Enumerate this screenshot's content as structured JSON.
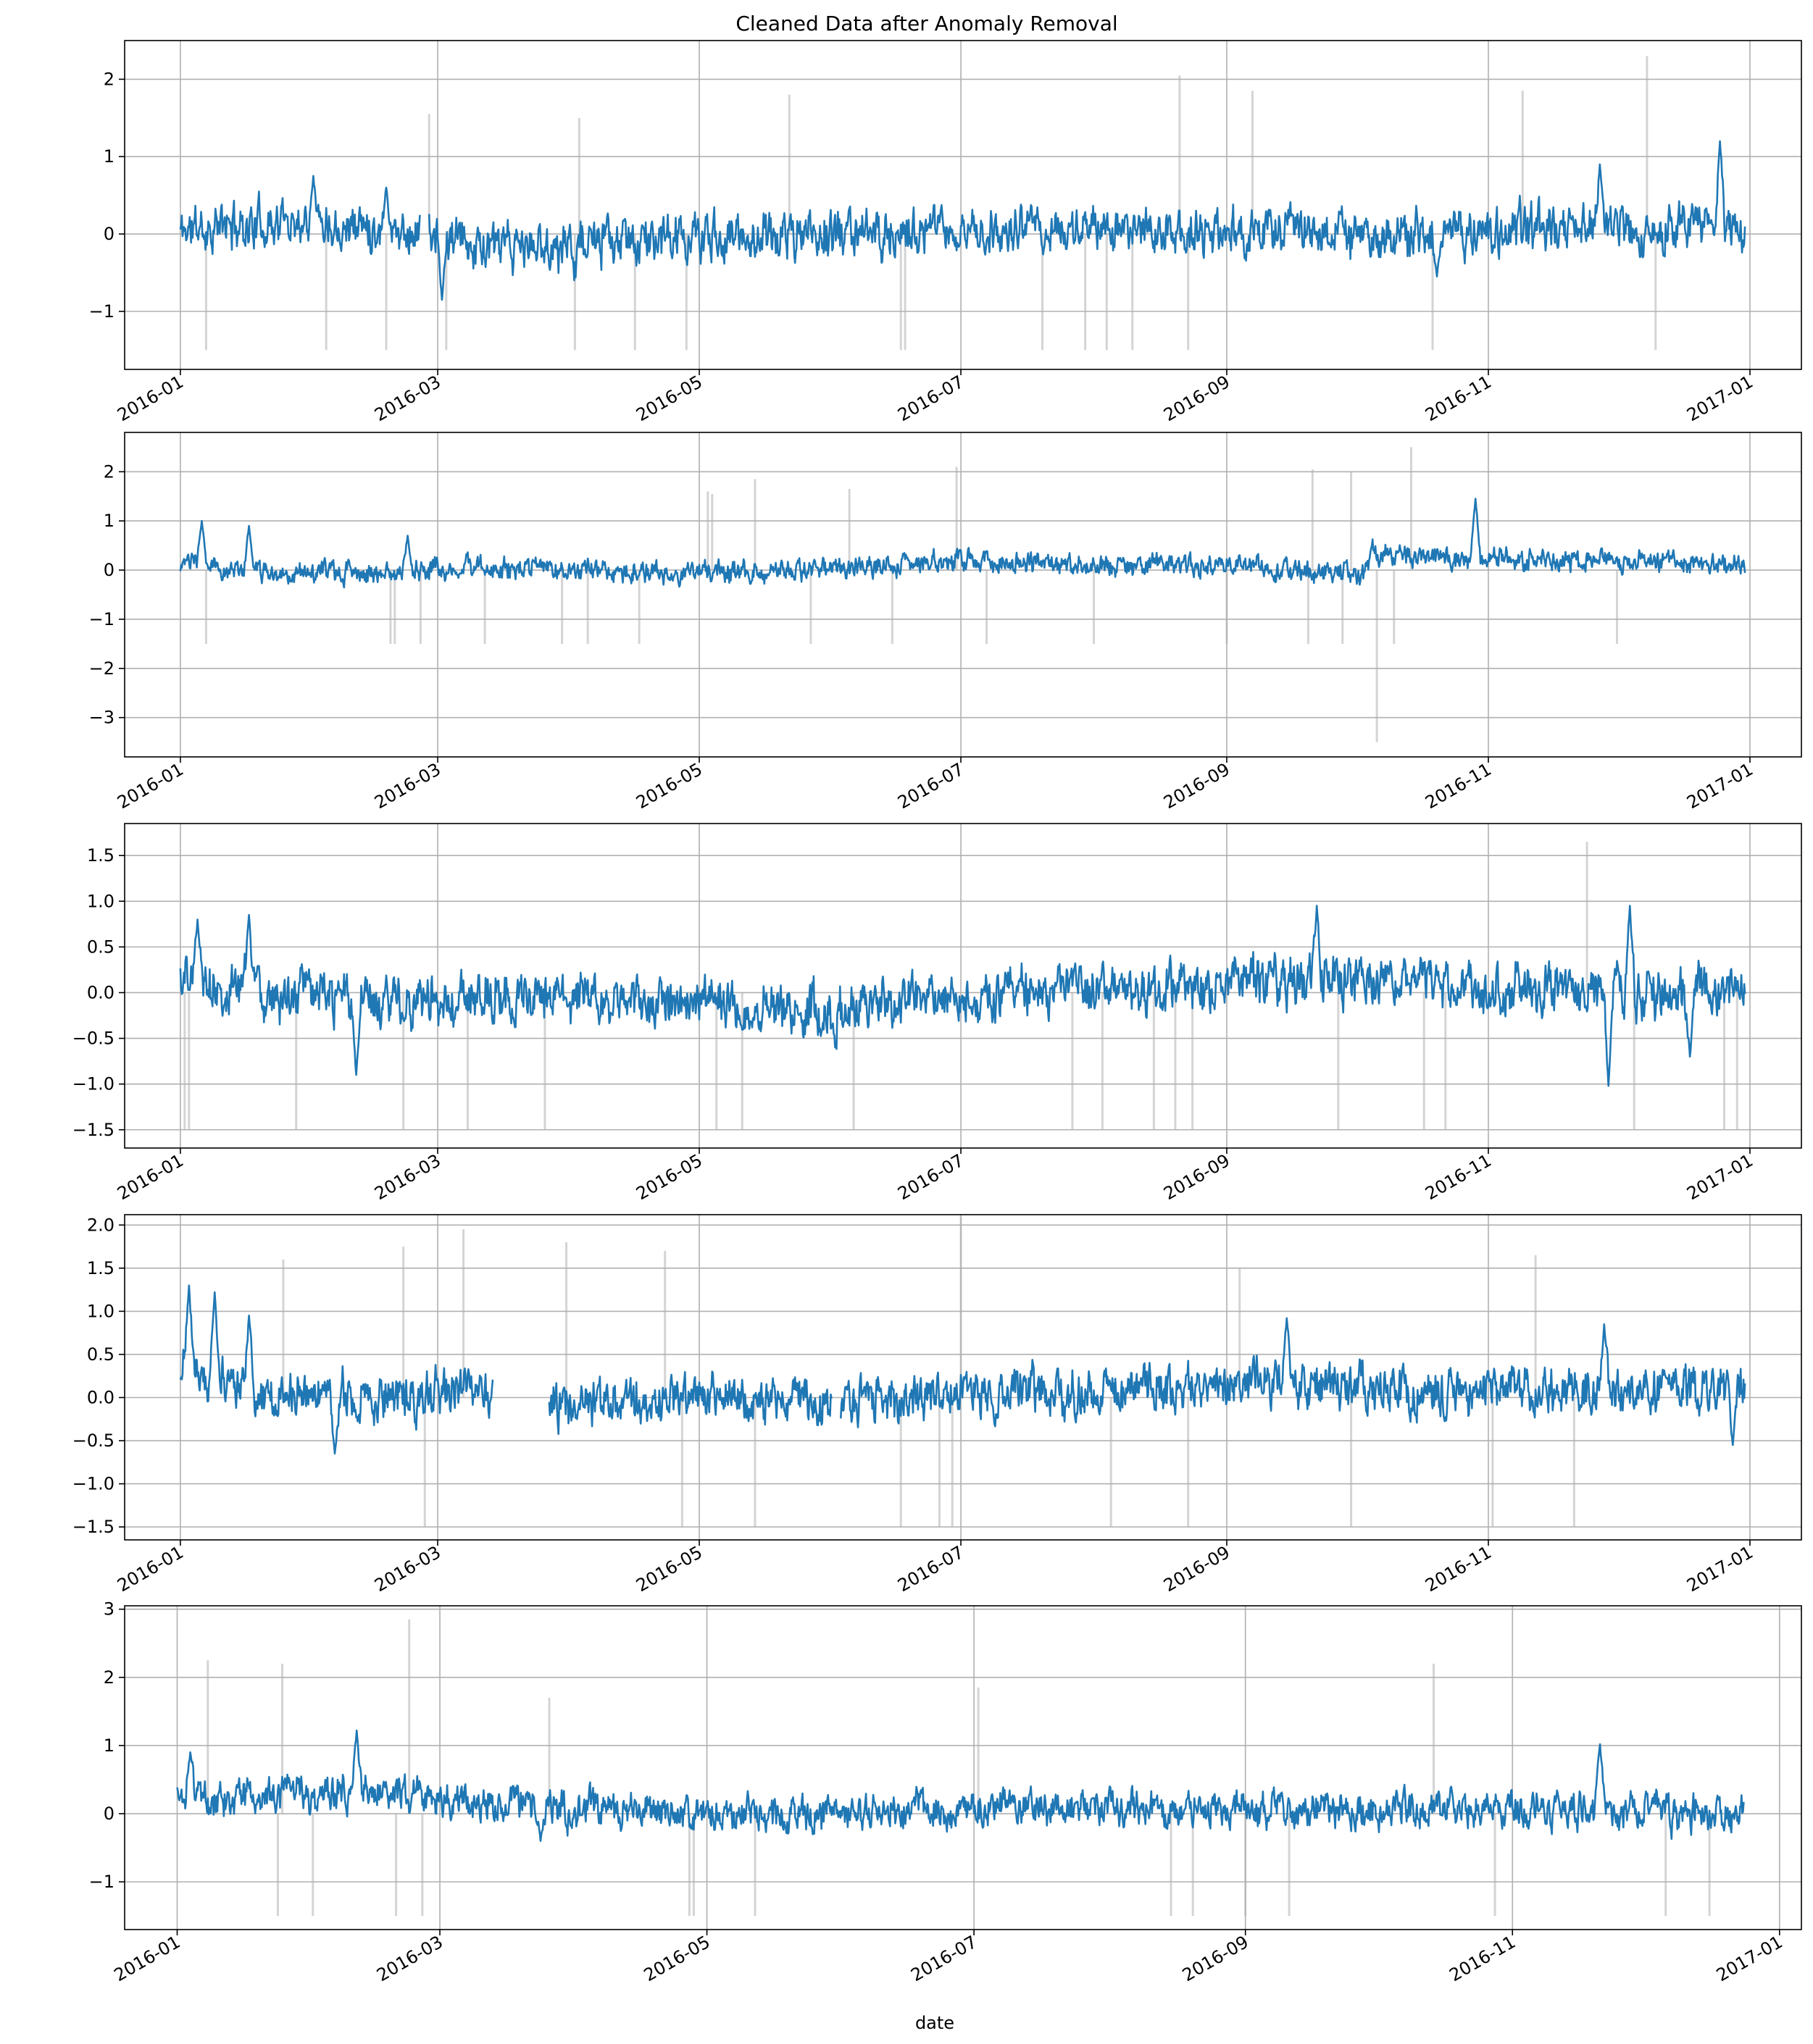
{
  "figure": {
    "title": "Cleaned Data after Anomaly Removal",
    "xlabel": "date"
  },
  "colors": {
    "series": "#1f77b4",
    "removed": "#b0b0b0",
    "grid": "#b0b0b0",
    "axes": "#000000"
  },
  "chart_data": [
    {
      "type": "line",
      "series_name": "",
      "x_range": [
        "2016-01-01",
        "2016-12-31"
      ],
      "x_ticks": [
        "2016-01",
        "2016-03",
        "2016-05",
        "2016-07",
        "2016-09",
        "2016-11",
        "2017-01"
      ],
      "ylim": [
        -1.75,
        2.5
      ],
      "y_ticks": [
        -1,
        0,
        1,
        2
      ],
      "y_tick_labels": [
        "−1",
        "0",
        "1",
        "2"
      ],
      "grid": true,
      "noise": {
        "amplitude": 0.22,
        "seed": 11
      },
      "level_points": [
        [
          "2016-01-01",
          0.05
        ],
        [
          "2016-02-01",
          0.2
        ],
        [
          "2016-02-28",
          0.0
        ],
        [
          "2016-03-15",
          -0.2
        ],
        [
          "2016-05-01",
          -0.05
        ],
        [
          "2016-06-01",
          0.0
        ],
        [
          "2016-08-01",
          0.05
        ],
        [
          "2016-10-15",
          0.0
        ],
        [
          "2016-11-15",
          0.05
        ],
        [
          "2016-12-31",
          0.1
        ]
      ],
      "spikes": [
        [
          "2016-02-01",
          0.75
        ],
        [
          "2016-02-18",
          0.6
        ],
        [
          "2016-03-02",
          -0.85
        ],
        [
          "2016-11-27",
          0.9
        ],
        [
          "2016-12-25",
          1.2
        ],
        [
          "2016-10-20",
          -0.55
        ]
      ],
      "gaps": [
        [
          "2016-02-26",
          "2016-02-28"
        ]
      ],
      "removed_lines": [
        [
          "2016-01-07",
          -1.5
        ],
        [
          "2016-02-04",
          -1.5
        ],
        [
          "2016-02-18",
          -1.5
        ],
        [
          "2016-02-28",
          1.55
        ],
        [
          "2016-03-03",
          -1.5
        ],
        [
          "2016-04-02",
          -1.5
        ],
        [
          "2016-04-03",
          1.5
        ],
        [
          "2016-04-16",
          -1.5
        ],
        [
          "2016-04-28",
          -1.5
        ],
        [
          "2016-05-22",
          1.8
        ],
        [
          "2016-06-17",
          -1.5
        ],
        [
          "2016-06-18",
          -1.5
        ],
        [
          "2016-07-20",
          -1.5
        ],
        [
          "2016-07-30",
          -1.5
        ],
        [
          "2016-08-04",
          -1.5
        ],
        [
          "2016-08-10",
          -1.5
        ],
        [
          "2016-08-21",
          2.05
        ],
        [
          "2016-08-23",
          -1.5
        ],
        [
          "2016-09-07",
          1.85
        ],
        [
          "2016-10-19",
          -1.5
        ],
        [
          "2016-11-09",
          1.85
        ],
        [
          "2016-12-08",
          2.3
        ],
        [
          "2016-12-10",
          -1.5
        ]
      ]
    },
    {
      "type": "line",
      "series_name": "",
      "x_range": [
        "2016-01-01",
        "2016-12-31"
      ],
      "x_ticks": [
        "2016-01",
        "2016-03",
        "2016-05",
        "2016-07",
        "2016-09",
        "2016-11",
        "2017-01"
      ],
      "ylim": [
        -3.8,
        2.8
      ],
      "y_ticks": [
        -3,
        -2,
        -1,
        0,
        1,
        2
      ],
      "y_tick_labels": [
        "−3",
        "−2",
        "−1",
        "0",
        "1",
        "2"
      ],
      "grid": true,
      "noise": {
        "amplitude": 0.16,
        "seed": 23
      },
      "level_points": [
        [
          "2016-01-01",
          0.15
        ],
        [
          "2016-01-20",
          -0.05
        ],
        [
          "2016-02-20",
          -0.05
        ],
        [
          "2016-03-15",
          0.05
        ],
        [
          "2016-05-01",
          -0.05
        ],
        [
          "2016-06-01",
          0.05
        ],
        [
          "2016-07-01",
          0.2
        ],
        [
          "2016-08-01",
          0.1
        ],
        [
          "2016-09-01",
          0.1
        ],
        [
          "2016-10-03",
          -0.1
        ],
        [
          "2016-10-05",
          0.35
        ],
        [
          "2016-10-25",
          0.2
        ],
        [
          "2016-11-10",
          0.2
        ],
        [
          "2016-12-31",
          0.1
        ]
      ],
      "spikes": [
        [
          "2016-01-06",
          1.0
        ],
        [
          "2016-01-17",
          0.9
        ],
        [
          "2016-10-29",
          1.45
        ],
        [
          "2016-02-23",
          0.7
        ]
      ],
      "gaps": [],
      "removed_lines": [
        [
          "2016-01-07",
          -1.5
        ],
        [
          "2016-02-19",
          -1.5
        ],
        [
          "2016-02-20",
          -1.5
        ],
        [
          "2016-02-26",
          -1.5
        ],
        [
          "2016-03-12",
          -1.5
        ],
        [
          "2016-03-30",
          -1.5
        ],
        [
          "2016-04-05",
          -1.5
        ],
        [
          "2016-04-17",
          -1.5
        ],
        [
          "2016-05-03",
          1.6
        ],
        [
          "2016-05-04",
          1.55
        ],
        [
          "2016-05-14",
          1.85
        ],
        [
          "2016-05-27",
          -1.5
        ],
        [
          "2016-06-05",
          1.65
        ],
        [
          "2016-06-15",
          -1.5
        ],
        [
          "2016-06-30",
          2.1
        ],
        [
          "2016-07-07",
          -1.5
        ],
        [
          "2016-08-01",
          -1.5
        ],
        [
          "2016-09-01",
          -1.5
        ],
        [
          "2016-09-20",
          -1.5
        ],
        [
          "2016-09-21",
          2.05
        ],
        [
          "2016-09-28",
          -1.5
        ],
        [
          "2016-09-30",
          2.0
        ],
        [
          "2016-10-06",
          -3.5
        ],
        [
          "2016-10-10",
          -1.5
        ],
        [
          "2016-10-14",
          2.5
        ],
        [
          "2016-12-01",
          -1.5
        ]
      ]
    },
    {
      "type": "line",
      "series_name": "",
      "x_range": [
        "2016-01-01",
        "2016-12-31"
      ],
      "x_ticks": [
        "2016-01",
        "2016-03",
        "2016-05",
        "2016-07",
        "2016-09",
        "2016-11",
        "2017-01"
      ],
      "ylim": [
        -1.7,
        1.85
      ],
      "y_ticks": [
        -1.5,
        -1.0,
        -0.5,
        0.0,
        0.5,
        1.0,
        1.5
      ],
      "y_tick_labels": [
        "−1.5",
        "−1.0",
        "−0.5",
        "0.0",
        "0.5",
        "1.0",
        "1.5"
      ],
      "grid": true,
      "noise": {
        "amplitude": 0.2,
        "seed": 37
      },
      "level_points": [
        [
          "2016-01-01",
          0.2
        ],
        [
          "2016-01-20",
          0.0
        ],
        [
          "2016-02-15",
          -0.1
        ],
        [
          "2016-03-15",
          -0.05
        ],
        [
          "2016-05-01",
          -0.1
        ],
        [
          "2016-06-01",
          -0.2
        ],
        [
          "2016-07-01",
          0.0
        ],
        [
          "2016-08-15",
          0.05
        ],
        [
          "2016-09-20",
          0.15
        ],
        [
          "2016-11-01",
          0.05
        ],
        [
          "2016-12-31",
          0.0
        ]
      ],
      "spikes": [
        [
          "2016-01-05",
          0.8
        ],
        [
          "2016-01-17",
          0.85
        ],
        [
          "2016-02-11",
          -0.9
        ],
        [
          "2016-09-22",
          0.95
        ],
        [
          "2016-11-29",
          -1.02
        ],
        [
          "2016-12-04",
          0.95
        ],
        [
          "2016-12-18",
          -0.7
        ]
      ],
      "gaps": [],
      "removed_lines": [
        [
          "2016-01-02",
          -1.5
        ],
        [
          "2016-01-03",
          -1.5
        ],
        [
          "2016-01-28",
          -1.5
        ],
        [
          "2016-02-22",
          -1.5
        ],
        [
          "2016-03-08",
          -1.5
        ],
        [
          "2016-03-26",
          -1.5
        ],
        [
          "2016-05-05",
          -1.5
        ],
        [
          "2016-05-11",
          -1.5
        ],
        [
          "2016-06-06",
          -1.5
        ],
        [
          "2016-07-27",
          -1.5
        ],
        [
          "2016-08-03",
          -1.5
        ],
        [
          "2016-08-15",
          -1.5
        ],
        [
          "2016-08-20",
          -1.5
        ],
        [
          "2016-08-24",
          -1.5
        ],
        [
          "2016-09-27",
          -1.5
        ],
        [
          "2016-10-17",
          -1.5
        ],
        [
          "2016-10-22",
          -1.5
        ],
        [
          "2016-11-24",
          1.65
        ],
        [
          "2016-12-05",
          -1.5
        ],
        [
          "2016-12-26",
          -1.5
        ],
        [
          "2016-12-29",
          -1.5
        ]
      ]
    },
    {
      "type": "line",
      "series_name": "",
      "x_range": [
        "2016-01-01",
        "2016-12-31"
      ],
      "x_ticks": [
        "2016-01",
        "2016-03",
        "2016-05",
        "2016-07",
        "2016-09",
        "2016-11",
        "2017-01"
      ],
      "ylim": [
        -1.65,
        2.12
      ],
      "y_ticks": [
        -1.5,
        -1.0,
        -0.5,
        0.0,
        0.5,
        1.0,
        1.5,
        2.0
      ],
      "y_tick_labels": [
        "−1.5",
        "−1.0",
        "−0.5",
        "0.0",
        "0.5",
        "1.0",
        "1.5",
        "2.0"
      ],
      "grid": true,
      "noise": {
        "amplitude": 0.2,
        "seed": 51
      },
      "level_points": [
        [
          "2016-01-01",
          0.4
        ],
        [
          "2016-01-15",
          0.1
        ],
        [
          "2016-02-15",
          0.0
        ],
        [
          "2016-03-13",
          0.1
        ],
        [
          "2016-03-28",
          -0.1
        ],
        [
          "2016-05-01",
          0.0
        ],
        [
          "2016-06-01",
          -0.05
        ],
        [
          "2016-07-15",
          0.05
        ],
        [
          "2016-09-15",
          0.15
        ],
        [
          "2016-11-01",
          0.05
        ],
        [
          "2016-12-31",
          0.1
        ]
      ],
      "spikes": [
        [
          "2016-01-03",
          1.3
        ],
        [
          "2016-01-09",
          1.22
        ],
        [
          "2016-01-17",
          0.95
        ],
        [
          "2016-02-06",
          -0.65
        ],
        [
          "2016-09-15",
          0.92
        ],
        [
          "2016-11-28",
          0.85
        ],
        [
          "2016-12-28",
          -0.55
        ]
      ],
      "gaps": [
        [
          "2016-03-14",
          "2016-03-27"
        ],
        [
          "2016-06-01",
          "2016-06-03"
        ]
      ],
      "removed_lines": [
        [
          "2016-01-25",
          1.6
        ],
        [
          "2016-02-22",
          1.75
        ],
        [
          "2016-02-27",
          -1.5
        ],
        [
          "2016-03-07",
          1.95
        ],
        [
          "2016-03-31",
          1.8
        ],
        [
          "2016-04-23",
          1.7
        ],
        [
          "2016-04-27",
          -1.5
        ],
        [
          "2016-05-14",
          -1.5
        ],
        [
          "2016-06-17",
          -1.5
        ],
        [
          "2016-06-26",
          -1.5
        ],
        [
          "2016-06-29",
          -1.5
        ],
        [
          "2016-07-01",
          2.1
        ],
        [
          "2016-08-05",
          -1.5
        ],
        [
          "2016-08-23",
          -1.5
        ],
        [
          "2016-09-04",
          1.5
        ],
        [
          "2016-09-30",
          -1.5
        ],
        [
          "2016-11-02",
          -1.5
        ],
        [
          "2016-11-12",
          1.65
        ],
        [
          "2016-11-21",
          -1.5
        ]
      ]
    },
    {
      "type": "line",
      "series_name": "",
      "x_range": [
        "2016-01-01",
        "2016-12-24"
      ],
      "x_ticks": [
        "2016-01",
        "2016-03",
        "2016-05",
        "2016-07",
        "2016-09",
        "2016-11",
        "2017-01"
      ],
      "ylim": [
        -1.7,
        3.05
      ],
      "y_ticks": [
        -1,
        0,
        1,
        2,
        3
      ],
      "y_tick_labels": [
        "−1",
        "0",
        "1",
        "2",
        "3"
      ],
      "grid": true,
      "noise": {
        "amplitude": 0.2,
        "seed": 67
      },
      "level_points": [
        [
          "2016-01-01",
          0.2
        ],
        [
          "2016-02-15",
          0.3
        ],
        [
          "2016-03-20",
          0.1
        ],
        [
          "2016-04-15",
          0.1
        ],
        [
          "2016-05-01",
          0.0
        ],
        [
          "2016-06-01",
          0.0
        ],
        [
          "2016-07-15",
          0.1
        ],
        [
          "2016-09-15",
          0.05
        ],
        [
          "2016-11-01",
          0.05
        ],
        [
          "2016-12-24",
          0.0
        ]
      ],
      "spikes": [
        [
          "2016-01-04",
          0.9
        ],
        [
          "2016-02-11",
          1.22
        ],
        [
          "2016-03-24",
          -0.4
        ],
        [
          "2016-11-21",
          1.02
        ]
      ],
      "gaps": [],
      "removed_lines": [
        [
          "2016-01-08",
          2.25
        ],
        [
          "2016-01-24",
          -1.5
        ],
        [
          "2016-01-25",
          2.2
        ],
        [
          "2016-02-01",
          -1.5
        ],
        [
          "2016-02-20",
          -1.5
        ],
        [
          "2016-02-23",
          2.85
        ],
        [
          "2016-02-26",
          -1.5
        ],
        [
          "2016-03-26",
          1.7
        ],
        [
          "2016-04-27",
          -1.5
        ],
        [
          "2016-04-28",
          -1.5
        ],
        [
          "2016-05-12",
          -1.5
        ],
        [
          "2016-07-02",
          1.85
        ],
        [
          "2016-08-15",
          -1.5
        ],
        [
          "2016-08-20",
          -1.5
        ],
        [
          "2016-09-01",
          -1.5
        ],
        [
          "2016-09-11",
          -1.5
        ],
        [
          "2016-10-14",
          2.2
        ],
        [
          "2016-10-28",
          -1.5
        ],
        [
          "2016-12-06",
          -1.5
        ],
        [
          "2016-12-16",
          -1.5
        ]
      ]
    }
  ]
}
